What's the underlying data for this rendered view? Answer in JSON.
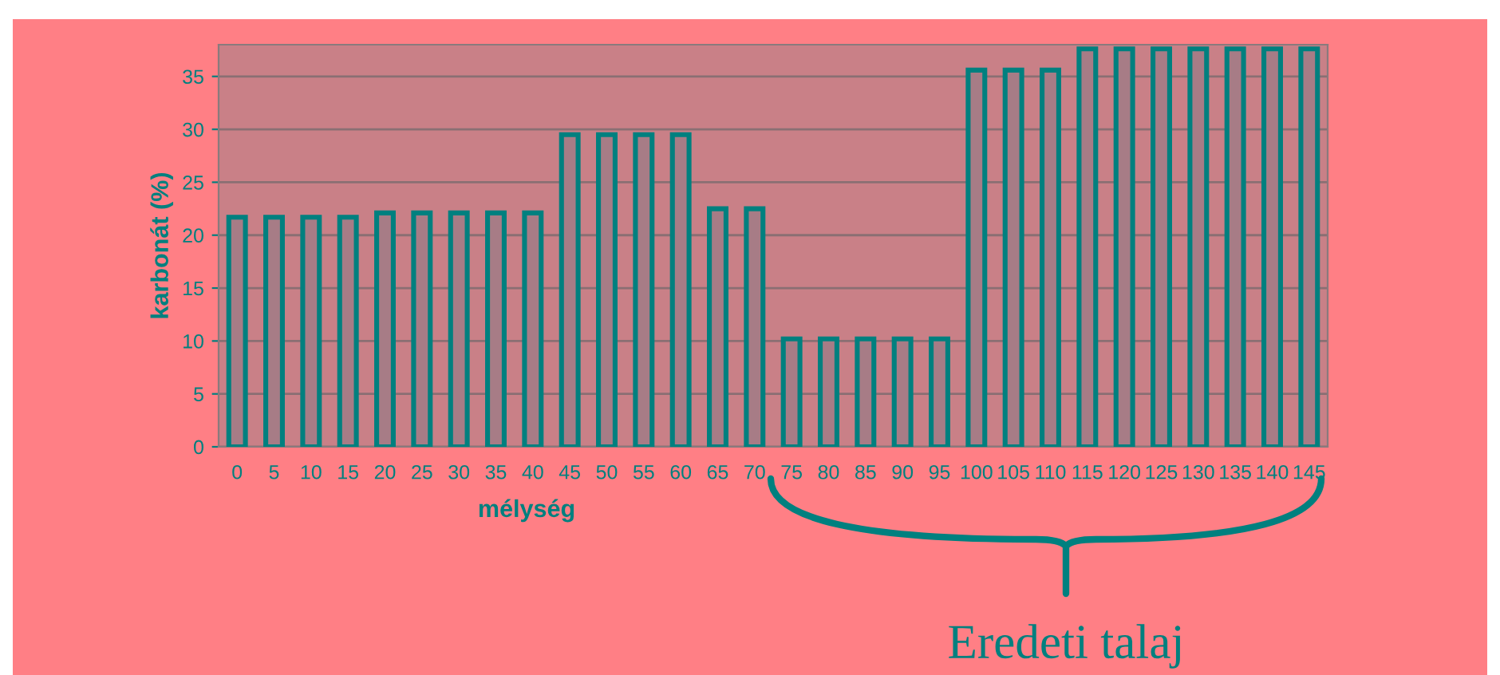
{
  "chart_data": {
    "type": "bar",
    "xlabel": "mélység",
    "ylabel": "karbonát (%)",
    "categories": [
      "0",
      "5",
      "10",
      "15",
      "20",
      "25",
      "30",
      "35",
      "40",
      "45",
      "50",
      "55",
      "60",
      "65",
      "70",
      "75",
      "80",
      "85",
      "90",
      "95",
      "100",
      "105",
      "110",
      "115",
      "120",
      "125",
      "130",
      "135",
      "140",
      "145"
    ],
    "values": [
      21.7,
      21.7,
      21.7,
      21.7,
      22.1,
      22.1,
      22.1,
      22.1,
      22.1,
      29.5,
      29.5,
      29.5,
      29.5,
      22.5,
      22.5,
      10.2,
      10.2,
      10.2,
      10.2,
      10.2,
      35.6,
      35.6,
      35.6,
      37.6,
      37.6,
      37.6,
      37.6,
      37.6,
      37.6,
      37.6
    ],
    "color": "#a77c86",
    "ylim": [
      0,
      38
    ],
    "yticks": [
      0,
      5,
      10,
      15,
      20,
      25,
      30,
      35
    ],
    "grid": "y",
    "legend": false,
    "annotations": [
      "Eredeti talaj"
    ]
  }
}
